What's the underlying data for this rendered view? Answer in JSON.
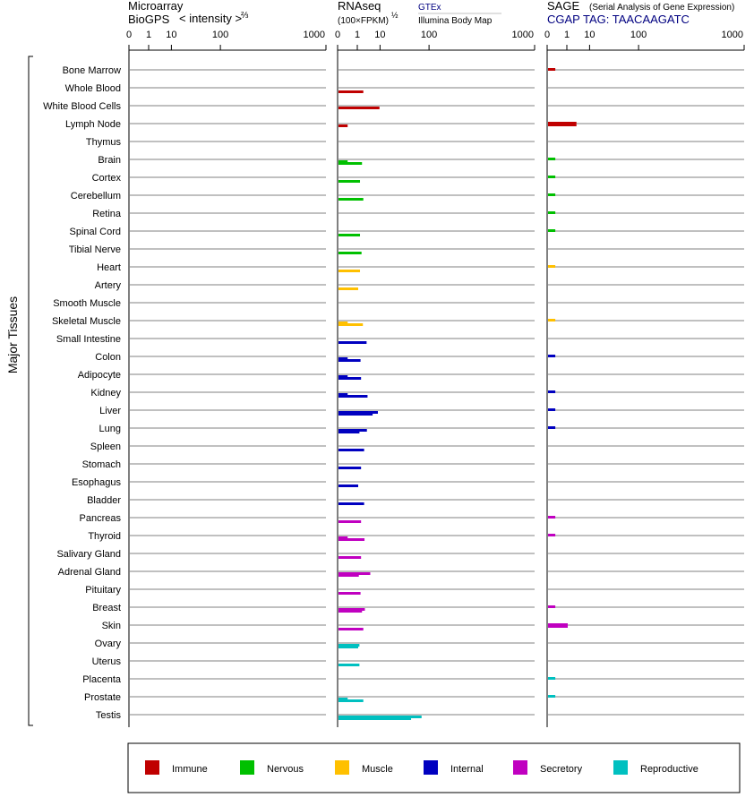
{
  "panels": {
    "microarray": {
      "line1": "Microarray",
      "line2": "BioGPS",
      "line3": "< intensity >",
      "exp": "⅔"
    },
    "rnaseq": {
      "line1": "RNAseq",
      "line2": "(100×FPKM)",
      "exp": "½",
      "src1": "GTEx",
      "src2": "Illumina Body Map"
    },
    "sage": {
      "line1": "SAGE",
      "line1b": "(Serial Analysis of Gene Expression)",
      "line2": "CGAP TAG: TAACAAGATC"
    }
  },
  "y_axis_label": "Major Tissues",
  "ticks": [
    "0",
    "1",
    "10",
    "100",
    "1000"
  ],
  "colors": {
    "Immune": "#c00000",
    "Nervous": "#00c000",
    "Muscle": "#ffc000",
    "Internal": "#0000c0",
    "Secretory": "#c000c0",
    "Reproductive": "#00c0c0",
    "gridline": "#808080",
    "sage_title": "#000080"
  },
  "legend": [
    {
      "label": "Immune",
      "color": "#c00000"
    },
    {
      "label": "Nervous",
      "color": "#00c000"
    },
    {
      "label": "Muscle",
      "color": "#ffc000"
    },
    {
      "label": "Internal",
      "color": "#0000c0"
    },
    {
      "label": "Secretory",
      "color": "#c000c0"
    },
    {
      "label": "Reproductive",
      "color": "#00c0c0"
    }
  ],
  "chart_data": {
    "type": "bar",
    "orientation": "horizontal",
    "x_scale": "power (log-like), ticks 0, 1, 10, 100, 1000",
    "categories": [
      "Bone Marrow",
      "Whole Blood",
      "White Blood Cells",
      "Lymph Node",
      "Thymus",
      "Brain",
      "Cortex",
      "Cerebellum",
      "Retina",
      "Spinal Cord",
      "Tibial Nerve",
      "Heart",
      "Artery",
      "Smooth Muscle",
      "Skeletal Muscle",
      "Small Intestine",
      "Colon",
      "Adipocyte",
      "Kidney",
      "Liver",
      "Lung",
      "Spleen",
      "Stomach",
      "Esophagus",
      "Bladder",
      "Pancreas",
      "Thyroid",
      "Salivary Gland",
      "Adrenal Gland",
      "Pituitary",
      "Breast",
      "Skin",
      "Ovary",
      "Uterus",
      "Placenta",
      "Prostate",
      "Testis"
    ],
    "groups": [
      "Immune",
      "Immune",
      "Immune",
      "Immune",
      "Immune",
      "Nervous",
      "Nervous",
      "Nervous",
      "Nervous",
      "Nervous",
      "Nervous",
      "Muscle",
      "Muscle",
      "Muscle",
      "Muscle",
      "Internal",
      "Internal",
      "Internal",
      "Internal",
      "Internal",
      "Internal",
      "Internal",
      "Internal",
      "Internal",
      "Internal",
      "Secretory",
      "Secretory",
      "Secretory",
      "Secretory",
      "Secretory",
      "Secretory",
      "Secretory",
      "Reproductive",
      "Reproductive",
      "Reproductive",
      "Reproductive",
      "Reproductive"
    ],
    "rnaseq_gtex": [
      0,
      2.0,
      0,
      0,
      0,
      1.7,
      1.3,
      2.0,
      0,
      1.3,
      1.6,
      1.3,
      1.0,
      0,
      1.9,
      2.9,
      1.4,
      1.5,
      3.2,
      5.2,
      1.2,
      2.2,
      1.5,
      1.0,
      2.2,
      1.5,
      2.3,
      1.5,
      1.1,
      1.4,
      1.7,
      2.0,
      1.0,
      1.2,
      0,
      2.0,
      50
    ],
    "rnaseq_bodymap": [
      0,
      0,
      9.0,
      0.1,
      0,
      0.1,
      0,
      0,
      0,
      0,
      0,
      0,
      0,
      0,
      0.1,
      0,
      0.1,
      0.1,
      0.1,
      8.0,
      3.0,
      0,
      0,
      0,
      0,
      0,
      0.1,
      0,
      4.2,
      0,
      2.4,
      0,
      1.2,
      0,
      0,
      0.1,
      75
    ],
    "sage": [
      0.05,
      0,
      0,
      3.0,
      0,
      0.05,
      0.05,
      0.05,
      0.05,
      0.05,
      0,
      0.05,
      0,
      0,
      0.05,
      0,
      0.05,
      0,
      0.05,
      0.05,
      0.05,
      0,
      0,
      0,
      0,
      0.05,
      0.05,
      0,
      0,
      0,
      0.05,
      1.0,
      0,
      0,
      0.05,
      0.05,
      0
    ],
    "microarray": []
  }
}
